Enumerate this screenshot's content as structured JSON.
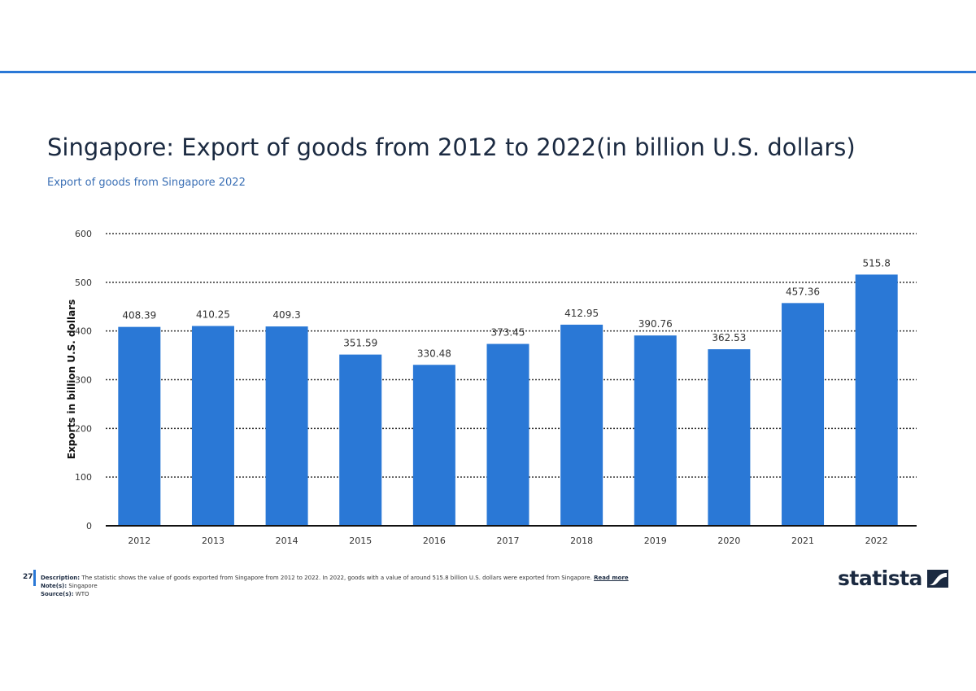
{
  "page": {
    "number": "27",
    "accent_color": "#2a78d6"
  },
  "header": {
    "title": "Singapore: Export of goods from 2012 to 2022(in billion U.S. dollars)",
    "subtitle": "Export of goods from Singapore 2022"
  },
  "chart_data": {
    "type": "bar",
    "categories": [
      "2012",
      "2013",
      "2014",
      "2015",
      "2016",
      "2017",
      "2018",
      "2019",
      "2020",
      "2021",
      "2022"
    ],
    "values": [
      408.39,
      410.25,
      409.3,
      351.59,
      330.48,
      373.45,
      412.95,
      390.76,
      362.53,
      457.36,
      515.8
    ],
    "data_labels": [
      "408.39",
      "410.25",
      "409.3",
      "351.59",
      "330.48",
      "373.45",
      "412.95",
      "390.76",
      "362.53",
      "457.36",
      "515.8"
    ],
    "ylabel": "Exports in billion U.S. dollars",
    "xlabel": "",
    "ylim": [
      0,
      600
    ],
    "yticks": [
      "0",
      "100",
      "200",
      "300",
      "400",
      "500",
      "600"
    ],
    "grid": true,
    "bar_color": "#2a78d6"
  },
  "footer": {
    "description_label": "Description:",
    "description": "The statistic shows the value of goods exported from Singapore from 2012 to 2022. In 2022, goods with a value of around 515.8 billion U.S. dollars were exported from Singapore.",
    "read_more": "Read more",
    "notes_label": "Note(s):",
    "notes": "Singapore",
    "source_label": "Source(s):",
    "source": "WTO"
  },
  "logo": {
    "text": "statista",
    "icon": "statista-logo-icon"
  }
}
